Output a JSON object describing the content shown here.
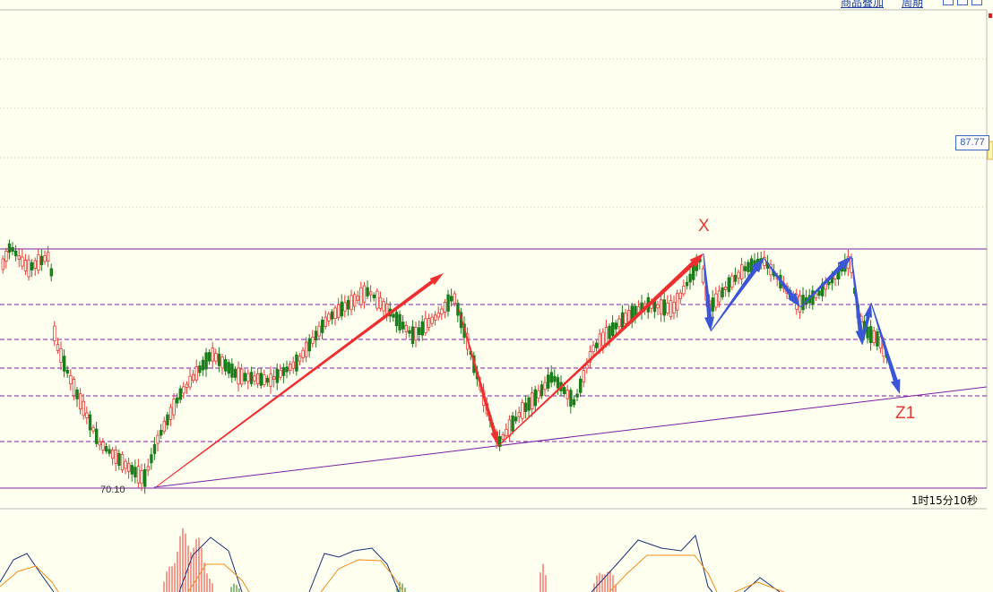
{
  "toolbar": {
    "overlay_link": "商品叠加",
    "period_link": "周期"
  },
  "price_marker": "87.77",
  "low_marker": "70.10",
  "countdown": "1时15分10秒",
  "annotations": {
    "x": "X",
    "z1": "Z1"
  },
  "colors": {
    "background": "#fffff0",
    "bull": "#e53935",
    "bear": "#1b7d1b",
    "level_line": "#7a1fa2",
    "red_arrow": "#ef2f2f",
    "blue_arrow": "#3a55d6",
    "macd_dif": "#1a2f7a",
    "macd_dea": "#f08c1a"
  },
  "chart_data": {
    "type": "candlestick",
    "main_levels": [
      "87.77",
      "70.10"
    ],
    "wave_markers": [
      "X",
      "Z1"
    ],
    "indicator": "MACD"
  }
}
